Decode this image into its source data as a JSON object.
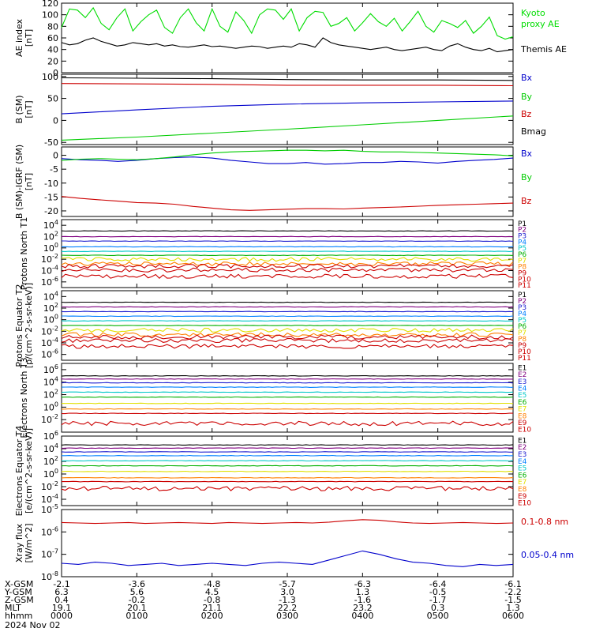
{
  "chart_data": [
    {
      "type": "line",
      "ylabel": "AE index [nT]",
      "ylim": [
        0,
        120
      ],
      "yticks": [
        "0",
        "20",
        "40",
        "60",
        "80",
        "100",
        "120"
      ],
      "series": [
        {
          "name": "Kyoto proxy AE",
          "color": "#00dd00",
          "values": [
            78,
            110,
            108,
            95,
            112,
            85,
            74,
            95,
            110,
            72,
            88,
            100,
            108,
            78,
            68,
            95,
            110,
            86,
            72,
            110,
            80,
            70,
            105,
            90,
            68,
            100,
            110,
            108,
            92,
            110,
            72,
            95,
            106,
            104,
            80,
            85,
            95,
            72,
            86,
            102,
            88,
            80,
            94,
            72,
            88,
            106,
            80,
            70,
            90,
            85,
            78,
            90,
            68,
            80,
            96,
            64,
            58,
            62
          ]
        },
        {
          "name": "Themis AE",
          "color": "#000000",
          "values": [
            52,
            48,
            50,
            56,
            60,
            54,
            50,
            46,
            48,
            52,
            50,
            48,
            50,
            46,
            48,
            45,
            44,
            46,
            48,
            45,
            46,
            44,
            42,
            44,
            46,
            45,
            42,
            44,
            46,
            44,
            50,
            48,
            44,
            60,
            52,
            48,
            46,
            44,
            42,
            40,
            42,
            44,
            40,
            38,
            40,
            42,
            44,
            40,
            38,
            46,
            50,
            44,
            40,
            38,
            42,
            36,
            38,
            40
          ]
        }
      ]
    },
    {
      "type": "line",
      "ylabel": "B (SM) [nT]",
      "ylim": [
        -55,
        105
      ],
      "yticks": [
        "-50",
        "0",
        "50",
        "100"
      ],
      "series": [
        {
          "name": "Bx",
          "color": "#0000cc",
          "x": [
            0,
            1,
            2,
            3,
            4,
            5,
            6
          ],
          "values": [
            15,
            24,
            32,
            37,
            40,
            42,
            44
          ]
        },
        {
          "name": "By",
          "color": "#00cc00",
          "x": [
            0,
            1,
            2,
            3,
            4,
            5,
            6
          ],
          "values": [
            -45,
            -38,
            -29,
            -20,
            -10,
            0,
            10
          ]
        },
        {
          "name": "Bz",
          "color": "#cc0000",
          "x": [
            0,
            1,
            2,
            3,
            4,
            5,
            6
          ],
          "values": [
            84,
            83,
            82,
            80,
            80,
            80,
            79
          ]
        },
        {
          "name": "Bmag",
          "color": "#000000",
          "x": [
            0,
            1,
            2,
            3,
            4,
            5,
            6
          ],
          "values": [
            97,
            96,
            95,
            93,
            92,
            92,
            91
          ]
        }
      ]
    },
    {
      "type": "line",
      "ylabel": "B (SM)-IGRF (SM) [nT]",
      "ylim": [
        -22,
        3
      ],
      "yticks": [
        "-20",
        "-15",
        "-10",
        "-5",
        "0"
      ],
      "series": [
        {
          "name": "Bx",
          "color": "#0000cc",
          "values": [
            -1.2,
            -1.6,
            -1.8,
            -2.2,
            -1.8,
            -1.2,
            -0.8,
            -0.6,
            -1.0,
            -1.8,
            -2.4,
            -3.0,
            -3.0,
            -2.6,
            -3.2,
            -3.0,
            -2.6,
            -2.6,
            -2.2,
            -2.4,
            -2.8,
            -2.2,
            -1.8,
            -1.5,
            -1.0
          ]
        },
        {
          "name": "By",
          "color": "#00cc00",
          "values": [
            -1.8,
            -1.4,
            -1.2,
            -1.4,
            -1.6,
            -1.2,
            -0.6,
            0.2,
            0.8,
            1.2,
            1.4,
            1.6,
            1.8,
            1.8,
            1.6,
            1.8,
            1.4,
            1.2,
            1.2,
            1.0,
            0.8,
            0.6,
            0.4,
            0.2,
            -0.2
          ]
        },
        {
          "name": "Bz",
          "color": "#cc0000",
          "values": [
            -14.8,
            -15.5,
            -16.0,
            -16.5,
            -17.0,
            -17.2,
            -17.6,
            -18.4,
            -19.0,
            -19.6,
            -19.8,
            -19.6,
            -19.4,
            -19.2,
            -19.2,
            -19.3,
            -19.0,
            -18.8,
            -18.6,
            -18.3,
            -18.0,
            -17.8,
            -17.6,
            -17.4,
            -17.2
          ]
        }
      ]
    },
    {
      "type": "line",
      "ylabel": "Protons North T1",
      "log": true,
      "ylim": [
        -7,
        5
      ],
      "yticks": [
        "10^4",
        "10^2",
        "10^0",
        "10^-2",
        "10^-4",
        "10^-6"
      ],
      "series": [
        {
          "name": "P1",
          "color": "#000000",
          "level": 3.0
        },
        {
          "name": "P2",
          "color": "#800080",
          "level": 2.0
        },
        {
          "name": "P3",
          "color": "#2020d0",
          "level": 1.2
        },
        {
          "name": "P4",
          "color": "#0080ff",
          "level": 0.2
        },
        {
          "name": "P5",
          "color": "#00c8c8",
          "level": -0.6
        },
        {
          "name": "P6",
          "color": "#00b000",
          "level": -1.3
        },
        {
          "name": "P7",
          "color": "#e0e000",
          "level": -2.0
        },
        {
          "name": "P8",
          "color": "#ff8000",
          "level": -2.8
        },
        {
          "name": "P9",
          "color": "#cc0000",
          "level": -3.2
        },
        {
          "name": "P10",
          "color": "#cc0000",
          "level": -3.9
        },
        {
          "name": "P11",
          "color": "#cc0000",
          "level": -5.0
        }
      ]
    },
    {
      "type": "line",
      "ylabel": "Protons Equator T2 [p/(cm^2-s-sr-keV)]",
      "log": true,
      "ylim": [
        -7,
        5
      ],
      "yticks": [
        "10^4",
        "10^2",
        "10^0",
        "10^-2",
        "10^-4",
        "10^-6"
      ],
      "series": [
        {
          "name": "P1",
          "color": "#000000",
          "level": 3.0
        },
        {
          "name": "P2",
          "color": "#800080",
          "level": 2.2
        },
        {
          "name": "P3",
          "color": "#2020d0",
          "level": 1.4
        },
        {
          "name": "P4",
          "color": "#0080ff",
          "level": 0.6
        },
        {
          "name": "P5",
          "color": "#00c8c8",
          "level": -0.2
        },
        {
          "name": "P6",
          "color": "#00b000",
          "level": -1.0
        },
        {
          "name": "P7",
          "color": "#e0e000",
          "level": -1.8
        },
        {
          "name": "P8",
          "color": "#ff8000",
          "level": -2.6
        },
        {
          "name": "P9",
          "color": "#cc0000",
          "level": -3.0
        },
        {
          "name": "P10",
          "color": "#cc0000",
          "level": -3.6
        },
        {
          "name": "P11",
          "color": "#cc0000",
          "level": -4.6
        }
      ]
    },
    {
      "type": "line",
      "ylabel": "Electrons North T3",
      "log": true,
      "ylim": [
        -4,
        7
      ],
      "yticks": [
        "10^6",
        "10^4",
        "10^2",
        "10^0",
        "10^-2"
      ],
      "series": [
        {
          "name": "E1",
          "color": "#000000",
          "level": 5.0
        },
        {
          "name": "E2",
          "color": "#800080",
          "level": 4.5
        },
        {
          "name": "E3",
          "color": "#2020d0",
          "level": 3.9
        },
        {
          "name": "E4",
          "color": "#0080ff",
          "level": 3.2
        },
        {
          "name": "E5",
          "color": "#00c8c8",
          "level": 2.4
        },
        {
          "name": "E6",
          "color": "#00b000",
          "level": 1.6
        },
        {
          "name": "E7",
          "color": "#e0e000",
          "level": 0.6
        },
        {
          "name": "E8",
          "color": "#ff8000",
          "level": -0.3
        },
        {
          "name": "E9",
          "color": "#cc0000",
          "level": -1.0
        },
        {
          "name": "E10",
          "color": "#cc0000",
          "level": -2.6
        }
      ]
    },
    {
      "type": "line",
      "ylabel": "Electrons Equator T4 [e/(cm^2-s-sr-keV)]",
      "log": true,
      "ylim": [
        -5,
        6
      ],
      "yticks": [
        "10^6",
        "10^4",
        "10^2",
        "10^0",
        "10^-2",
        "10^-4"
      ],
      "series": [
        {
          "name": "E1",
          "color": "#000000",
          "level": 4.6
        },
        {
          "name": "E2",
          "color": "#800080",
          "level": 4.1
        },
        {
          "name": "E3",
          "color": "#2020d0",
          "level": 3.5
        },
        {
          "name": "E4",
          "color": "#0080ff",
          "level": 2.9
        },
        {
          "name": "E5",
          "color": "#00c8c8",
          "level": 2.1
        },
        {
          "name": "E6",
          "color": "#00b000",
          "level": 1.3
        },
        {
          "name": "E7",
          "color": "#e0e000",
          "level": 0.4
        },
        {
          "name": "E8",
          "color": "#ff8000",
          "level": -0.6
        },
        {
          "name": "E9",
          "color": "#cc0000",
          "level": -1.2
        },
        {
          "name": "E10",
          "color": "#cc0000",
          "level": -2.3
        }
      ]
    },
    {
      "type": "line",
      "ylabel": "Xray flux [W/m^2]",
      "log": true,
      "ylim": [
        -8,
        -5
      ],
      "yticks": [
        "10^-5",
        "10^-6",
        "10^-7",
        "10^-8"
      ],
      "series": [
        {
          "name": "0.1-0.8 nm",
          "color": "#cc0000",
          "values": [
            -5.58,
            -5.6,
            -5.62,
            -5.6,
            -5.58,
            -5.62,
            -5.6,
            -5.58,
            -5.6,
            -5.62,
            -5.58,
            -5.6,
            -5.62,
            -5.6,
            -5.58,
            -5.6,
            -5.56,
            -5.5,
            -5.45,
            -5.48,
            -5.55,
            -5.6,
            -5.62,
            -5.6,
            -5.58,
            -5.6,
            -5.62,
            -5.6
          ]
        },
        {
          "name": "0.05-0.4 nm",
          "color": "#0000cc",
          "values": [
            -7.4,
            -7.45,
            -7.35,
            -7.4,
            -7.5,
            -7.45,
            -7.4,
            -7.5,
            -7.45,
            -7.4,
            -7.45,
            -7.5,
            -7.4,
            -7.35,
            -7.4,
            -7.45,
            -7.25,
            -7.05,
            -6.85,
            -7.0,
            -7.2,
            -7.35,
            -7.4,
            -7.5,
            -7.55,
            -7.45,
            -7.5,
            -7.45
          ]
        }
      ]
    }
  ],
  "ephemeris": {
    "rows": [
      {
        "label": "X-GSM",
        "values": [
          "-2.1",
          "-3.6",
          "-4.8",
          "-5.7",
          "-6.3",
          "-6.4",
          "-6.1"
        ]
      },
      {
        "label": "Y-GSM",
        "values": [
          "6.3",
          "5.6",
          "4.5",
          "3.0",
          "1.3",
          "-0.5",
          "-2.2"
        ]
      },
      {
        "label": "Z-GSM",
        "values": [
          "0.4",
          "-0.2",
          "-0.8",
          "-1.3",
          "-1.6",
          "-1.7",
          "-1.5"
        ]
      },
      {
        "label": "MLT",
        "values": [
          "19.1",
          "20.1",
          "21.1",
          "22.2",
          "23.2",
          "0.3",
          "1.3"
        ]
      },
      {
        "label": "hhmm",
        "values": [
          "0000",
          "0100",
          "0200",
          "0300",
          "0400",
          "0500",
          "0600"
        ]
      }
    ],
    "date": "2024 Nov 02"
  }
}
